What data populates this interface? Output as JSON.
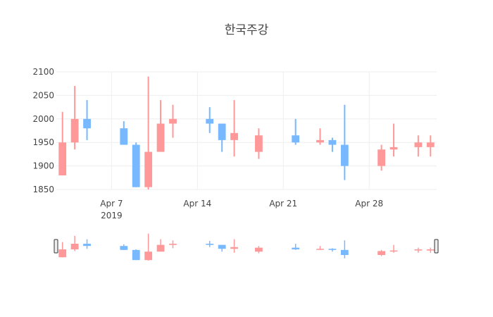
{
  "chart_data": {
    "type": "candlestick",
    "title": "한국주강",
    "xlabel": "",
    "ylabel": "",
    "ylim": [
      1850,
      2100
    ],
    "yticks": [
      1850,
      1900,
      1950,
      2000,
      2050,
      2100
    ],
    "xticks": [
      {
        "date": "2019-04-07",
        "label": "Apr 7",
        "sublabel": "2019"
      },
      {
        "date": "2019-04-14",
        "label": "Apr 14",
        "sublabel": ""
      },
      {
        "date": "2019-04-21",
        "label": "Apr 21",
        "sublabel": ""
      },
      {
        "date": "2019-04-28",
        "label": "Apr 28",
        "sublabel": ""
      }
    ],
    "xrange": [
      "2019-04-02T12:00",
      "2019-05-03T12:00"
    ],
    "grid": true,
    "legend": false,
    "increasing_color": "#ff9999",
    "decreasing_color": "#77b8ff",
    "rangeslider": true,
    "data": [
      {
        "date": "2019-04-03",
        "open": 1880,
        "high": 2015,
        "low": 1880,
        "close": 1950
      },
      {
        "date": "2019-04-04",
        "open": 1950,
        "high": 2070,
        "low": 1935,
        "close": 2000
      },
      {
        "date": "2019-04-05",
        "open": 2000,
        "high": 2040,
        "low": 1955,
        "close": 1980
      },
      {
        "date": "2019-04-08",
        "open": 1980,
        "high": 1995,
        "low": 1945,
        "close": 1945
      },
      {
        "date": "2019-04-09",
        "open": 1945,
        "high": 1950,
        "low": 1855,
        "close": 1855
      },
      {
        "date": "2019-04-10",
        "open": 1855,
        "high": 2090,
        "low": 1850,
        "close": 1930
      },
      {
        "date": "2019-04-11",
        "open": 1930,
        "high": 2040,
        "low": 1930,
        "close": 1990
      },
      {
        "date": "2019-04-12",
        "open": 1990,
        "high": 2030,
        "low": 1960,
        "close": 2000
      },
      {
        "date": "2019-04-15",
        "open": 2000,
        "high": 2025,
        "low": 1970,
        "close": 1990
      },
      {
        "date": "2019-04-16",
        "open": 1990,
        "high": 1990,
        "low": 1930,
        "close": 1955
      },
      {
        "date": "2019-04-17",
        "open": 1955,
        "high": 2040,
        "low": 1920,
        "close": 1970
      },
      {
        "date": "2019-04-19",
        "open": 1930,
        "high": 1980,
        "low": 1915,
        "close": 1965
      },
      {
        "date": "2019-04-22",
        "open": 1965,
        "high": 2000,
        "low": 1945,
        "close": 1950
      },
      {
        "date": "2019-04-24",
        "open": 1950,
        "high": 1980,
        "low": 1945,
        "close": 1955
      },
      {
        "date": "2019-04-25",
        "open": 1955,
        "high": 1960,
        "low": 1930,
        "close": 1945
      },
      {
        "date": "2019-04-26",
        "open": 1945,
        "high": 2030,
        "low": 1870,
        "close": 1900
      },
      {
        "date": "2019-04-29",
        "open": 1900,
        "high": 1945,
        "low": 1890,
        "close": 1935
      },
      {
        "date": "2019-04-30",
        "open": 1935,
        "high": 1990,
        "low": 1920,
        "close": 1940
      },
      {
        "date": "2019-05-02",
        "open": 1940,
        "high": 1965,
        "low": 1920,
        "close": 1950
      },
      {
        "date": "2019-05-03",
        "open": 1940,
        "high": 1965,
        "low": 1920,
        "close": 1950
      }
    ]
  },
  "title": "한국주강"
}
